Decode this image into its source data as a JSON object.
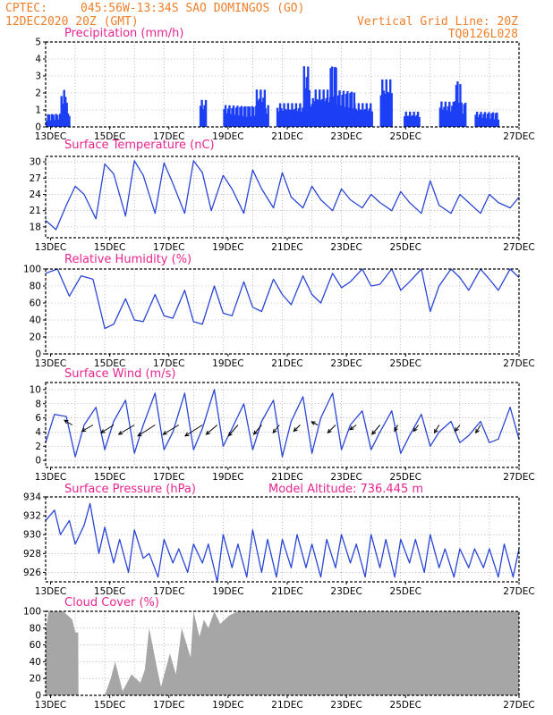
{
  "header": {
    "source": "CPTEC:",
    "location": "045:56W-13:34S  SAO DOMINGOS (GO)",
    "date": "12DEC2020 20Z (GMT)",
    "grid_note": "Vertical Grid Line: 20Z",
    "code": "TQ0126L028"
  },
  "chart_data": [
    {
      "id": "precip",
      "type": "bar",
      "title": "Precipitation  (mm/h)",
      "color": "#1c3ff5",
      "ylim": [
        0,
        5
      ],
      "yticks": [
        "0",
        "1",
        "2",
        "3",
        "4",
        "5"
      ],
      "xtick_labels": [
        "13DEC",
        "15DEC",
        "17DEC",
        "19DEC",
        "21DEC",
        "23DEC",
        "25DEC",
        "27DEC"
      ],
      "x_start": "12DEC2020 20Z",
      "step_hours": 1,
      "segments": [
        {
          "from_day": 0.0,
          "to_day": 0.8,
          "level": 0.8
        },
        {
          "from_day": 0.5,
          "to_day": 0.7,
          "level": 2.2
        },
        {
          "from_day": 5.2,
          "to_day": 5.4,
          "level": 1.6
        },
        {
          "from_day": 6.0,
          "to_day": 7.5,
          "level": 1.3
        },
        {
          "from_day": 7.1,
          "to_day": 7.4,
          "level": 2.2
        },
        {
          "from_day": 7.8,
          "to_day": 11.0,
          "level": 1.4
        },
        {
          "from_day": 8.7,
          "to_day": 8.9,
          "level": 3.6
        },
        {
          "from_day": 9.0,
          "to_day": 10.4,
          "level": 2.2
        },
        {
          "from_day": 9.6,
          "to_day": 9.8,
          "level": 3.8
        },
        {
          "from_day": 11.3,
          "to_day": 11.7,
          "level": 2.8
        },
        {
          "from_day": 12.1,
          "to_day": 12.6,
          "level": 0.9
        },
        {
          "from_day": 13.3,
          "to_day": 14.2,
          "level": 1.5
        },
        {
          "from_day": 13.8,
          "to_day": 14.0,
          "level": 2.8
        },
        {
          "from_day": 14.5,
          "to_day": 15.3,
          "level": 0.9
        }
      ]
    },
    {
      "id": "temp",
      "type": "line",
      "title": "Surface Temperature  (nC)",
      "color": "#2a46d6",
      "ylim": [
        16,
        31
      ],
      "yticks": [
        "18",
        "21",
        "24",
        "27",
        "30"
      ],
      "xtick_labels": [
        "13DEC",
        "15DEC",
        "17DEC",
        "19DEC",
        "21DEC",
        "23DEC",
        "25DEC",
        "27DEC"
      ],
      "x": [
        0,
        0.35,
        0.7,
        1.0,
        1.3,
        1.7,
        2.0,
        2.3,
        2.7,
        3.0,
        3.3,
        3.7,
        4.0,
        4.3,
        4.7,
        5.0,
        5.3,
        5.6,
        6.0,
        6.3,
        6.7,
        7.0,
        7.3,
        7.7,
        8.0,
        8.3,
        8.7,
        9.0,
        9.3,
        9.7,
        10.0,
        10.3,
        10.7,
        11.0,
        11.3,
        11.7,
        12.0,
        12.3,
        12.7,
        13.0,
        13.3,
        13.7,
        14.0,
        14.3,
        14.7,
        15.0,
        15.3,
        15.7,
        16.0
      ],
      "y": [
        19.2,
        17.5,
        22.0,
        25.5,
        24.0,
        19.5,
        29.6,
        27.8,
        20.0,
        30.2,
        27.5,
        20.5,
        29.8,
        26.0,
        20.5,
        30.2,
        28.0,
        21.0,
        27.5,
        25.0,
        20.5,
        28.5,
        25.0,
        21.5,
        28.0,
        23.5,
        21.5,
        25.5,
        23.0,
        21.0,
        25.0,
        23.0,
        21.5,
        24.0,
        22.5,
        21.0,
        24.5,
        22.5,
        20.5,
        26.5,
        22.0,
        20.5,
        24.0,
        22.5,
        20.5,
        24.0,
        22.5,
        21.5,
        23.5
      ]
    },
    {
      "id": "rh",
      "type": "line",
      "title": "Relative Humidity  (%)",
      "color": "#2a46d6",
      "ylim": [
        0,
        100
      ],
      "yticks": [
        "0",
        "20",
        "40",
        "60",
        "80",
        "100"
      ],
      "xtick_labels": [
        "13DEC",
        "15DEC",
        "17DEC",
        "19DEC",
        "21DEC",
        "23DEC",
        "25DEC",
        "27DEC"
      ],
      "x": [
        0,
        0.4,
        0.8,
        1.2,
        1.6,
        2.0,
        2.3,
        2.7,
        3.0,
        3.3,
        3.7,
        4.0,
        4.3,
        4.7,
        5.0,
        5.3,
        5.7,
        6.0,
        6.3,
        6.7,
        7.0,
        7.3,
        7.7,
        8.0,
        8.3,
        8.7,
        9.0,
        9.3,
        9.7,
        10.0,
        10.3,
        10.7,
        11.0,
        11.3,
        11.7,
        12.0,
        12.3,
        12.7,
        13.0,
        13.3,
        13.7,
        14.0,
        14.3,
        14.7,
        15.0,
        15.3,
        15.7,
        16.0
      ],
      "y": [
        95,
        100,
        68,
        92,
        88,
        30,
        35,
        65,
        40,
        38,
        70,
        45,
        42,
        75,
        38,
        35,
        80,
        48,
        45,
        85,
        55,
        50,
        88,
        70,
        58,
        92,
        70,
        60,
        95,
        78,
        85,
        100,
        80,
        82,
        100,
        75,
        85,
        100,
        50,
        80,
        100,
        90,
        75,
        100,
        88,
        75,
        100,
        90
      ]
    },
    {
      "id": "wind",
      "type": "line",
      "title": "Surface Wind  (m/s)",
      "color": "#2a46d6",
      "ylim": [
        -1,
        11
      ],
      "yticks": [
        "0",
        "2",
        "4",
        "6",
        "8",
        "10"
      ],
      "xtick_labels": [
        "13DEC",
        "15DEC",
        "17DEC",
        "19DEC",
        "21DEC",
        "23DEC",
        "25DEC",
        "27DEC"
      ],
      "x": [
        0,
        0.3,
        0.7,
        1.0,
        1.3,
        1.7,
        2.0,
        2.3,
        2.7,
        3.0,
        3.3,
        3.7,
        4.0,
        4.3,
        4.7,
        5.0,
        5.3,
        5.7,
        6.0,
        6.3,
        6.7,
        7.0,
        7.3,
        7.7,
        8.0,
        8.3,
        8.7,
        9.0,
        9.3,
        9.7,
        10.0,
        10.3,
        10.7,
        11.0,
        11.3,
        11.7,
        12.0,
        12.3,
        12.7,
        13.0,
        13.3,
        13.7,
        14.0,
        14.3,
        14.7,
        15.0,
        15.3,
        15.7,
        16.0
      ],
      "y": [
        2.5,
        6.5,
        6.2,
        0.5,
        5.0,
        7.5,
        1.5,
        5.5,
        8.5,
        1.0,
        5.0,
        9.5,
        1.5,
        4.0,
        9.5,
        1.5,
        4.5,
        10.0,
        2.0,
        4.5,
        8.0,
        1.5,
        5.5,
        8.5,
        0.5,
        5.5,
        9.0,
        1.0,
        6.0,
        9.5,
        1.5,
        5.0,
        7.0,
        1.5,
        4.0,
        7.0,
        1.0,
        3.5,
        6.5,
        2.0,
        4.0,
        5.5,
        2.5,
        3.5,
        5.5,
        2.5,
        3.0,
        7.5,
        3.0
      ],
      "vectors": [
        {
          "day": 0.9,
          "u": -2.5,
          "v": 1.5
        },
        {
          "day": 1.6,
          "u": -3.5,
          "v": -2.0
        },
        {
          "day": 2.3,
          "u": -4.0,
          "v": -2.5
        },
        {
          "day": 3.0,
          "u": -5.0,
          "v": -3.0
        },
        {
          "day": 3.7,
          "u": -5.5,
          "v": -3.5
        },
        {
          "day": 4.5,
          "u": -5.0,
          "v": -3.0
        },
        {
          "day": 5.3,
          "u": -5.5,
          "v": -3.5
        },
        {
          "day": 5.8,
          "u": -3.5,
          "v": -3.0
        },
        {
          "day": 6.5,
          "u": -3.0,
          "v": -3.5
        },
        {
          "day": 7.3,
          "u": -2.5,
          "v": -3.0
        },
        {
          "day": 7.9,
          "u": -2.0,
          "v": -2.5
        },
        {
          "day": 8.6,
          "u": -2.0,
          "v": -2.0
        },
        {
          "day": 9.2,
          "u": -2.0,
          "v": 1.0
        },
        {
          "day": 9.8,
          "u": -2.5,
          "v": -2.5
        },
        {
          "day": 10.5,
          "u": -2.0,
          "v": -1.5
        },
        {
          "day": 11.3,
          "u": -2.5,
          "v": -3.0
        },
        {
          "day": 11.9,
          "u": -1.0,
          "v": -2.0
        },
        {
          "day": 12.6,
          "u": -1.5,
          "v": -2.0
        },
        {
          "day": 13.3,
          "u": -1.5,
          "v": -2.5
        },
        {
          "day": 14.0,
          "u": -1.5,
          "v": -2.0
        },
        {
          "day": 14.7,
          "u": -1.5,
          "v": -2.5
        }
      ]
    },
    {
      "id": "press",
      "type": "line",
      "title": "Surface Pressure  (hPa)",
      "subtitle": "Model Altitude: 736.445  m",
      "color": "#2a46d6",
      "ylim": [
        925,
        934
      ],
      "yticks": [
        "926",
        "928",
        "930",
        "932",
        "934"
      ],
      "xtick_labels": [
        "13DEC",
        "15DEC",
        "17DEC",
        "19DEC",
        "21DEC",
        "23DEC",
        "25DEC",
        "27DEC"
      ],
      "x": [
        0,
        0.3,
        0.5,
        0.8,
        1.0,
        1.3,
        1.5,
        1.8,
        2.0,
        2.3,
        2.5,
        2.8,
        3.0,
        3.3,
        3.5,
        3.8,
        4.0,
        4.3,
        4.5,
        4.8,
        5.0,
        5.3,
        5.5,
        5.8,
        6.0,
        6.3,
        6.5,
        6.8,
        7.0,
        7.3,
        7.5,
        7.8,
        8.0,
        8.3,
        8.5,
        8.8,
        9.0,
        9.3,
        9.5,
        9.8,
        10.0,
        10.3,
        10.5,
        10.8,
        11.0,
        11.3,
        11.5,
        11.8,
        12.0,
        12.3,
        12.5,
        12.8,
        13.0,
        13.3,
        13.5,
        13.8,
        14.0,
        14.3,
        14.5,
        14.8,
        15.0,
        15.3,
        15.5,
        15.8,
        16.0
      ],
      "y": [
        931.5,
        932.6,
        930.0,
        931.5,
        929.0,
        931.0,
        933.3,
        928.0,
        930.8,
        927.0,
        929.5,
        926.0,
        930.5,
        927.5,
        928.0,
        925.5,
        929.5,
        927.0,
        928.5,
        926.0,
        929.0,
        927.0,
        929.0,
        925.0,
        930.0,
        926.5,
        929.0,
        925.5,
        930.5,
        926.0,
        929.5,
        925.5,
        929.5,
        926.5,
        930.0,
        926.5,
        929.0,
        925.5,
        929.5,
        926.5,
        930.0,
        927.0,
        929.0,
        925.5,
        930.0,
        926.5,
        929.5,
        925.5,
        929.5,
        927.0,
        929.5,
        926.0,
        930.0,
        926.5,
        928.5,
        925.5,
        928.5,
        926.5,
        928.5,
        926.5,
        928.5,
        925.5,
        929.0,
        925.5,
        928.5
      ]
    },
    {
      "id": "cloud",
      "type": "area",
      "title": "Cloud Cover  (%)",
      "color": "#a6a6a6",
      "ylim": [
        0,
        100
      ],
      "yticks": [
        "0",
        "20",
        "40",
        "60",
        "80",
        "100"
      ],
      "xtick_labels": [
        "13DEC",
        "15DEC",
        "17DEC",
        "19DEC",
        "21DEC",
        "23DEC",
        "25DEC",
        "27DEC"
      ],
      "x": [
        0,
        0.1,
        0.6,
        0.9,
        1.0,
        1.1,
        1.11,
        2.0,
        2.2,
        2.35,
        2.6,
        2.9,
        3.2,
        3.35,
        3.5,
        3.75,
        3.9,
        4.2,
        4.4,
        4.6,
        4.9,
        5.0,
        5.2,
        5.35,
        5.5,
        5.7,
        5.9,
        6.2,
        6.5,
        7.0,
        16.0
      ],
      "y": [
        75,
        100,
        100,
        90,
        75,
        75,
        0,
        0,
        20,
        40,
        5,
        25,
        15,
        30,
        80,
        35,
        10,
        50,
        25,
        80,
        45,
        100,
        70,
        90,
        80,
        100,
        85,
        95,
        100,
        100,
        100
      ]
    }
  ]
}
